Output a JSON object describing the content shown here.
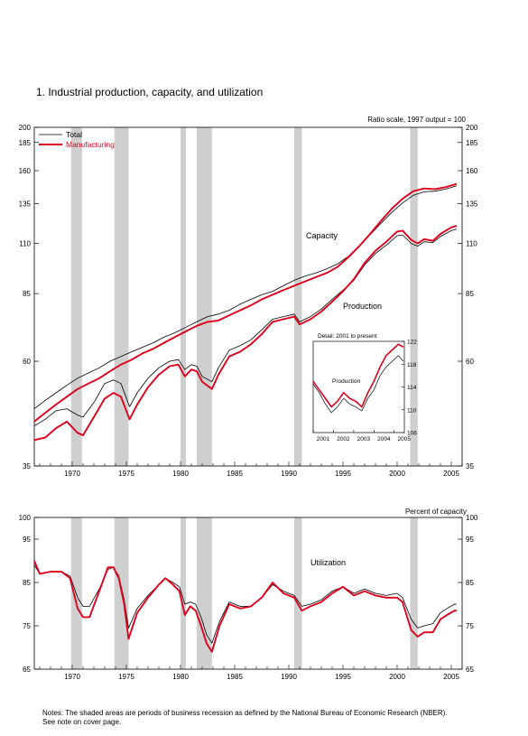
{
  "figure": {
    "title": "1.  Industrial production, capacity, and utilization",
    "notes": "Notes: The shaded areas are periods of business recession as defined by the National Bureau of Economic Research (NBER).",
    "notes2": "See note on cover page."
  },
  "colors": {
    "total": "#000000",
    "manufacturing": "#e0001b",
    "recession": "#cfcfcf"
  },
  "chart_data": [
    {
      "type": "line",
      "title": "",
      "scale": "log",
      "scale_note": "Ratio scale, 1997 output = 100",
      "xlim": [
        1966.5,
        2006.0
      ],
      "ylim": [
        35,
        200
      ],
      "yticks": [
        35,
        60,
        85,
        110,
        135,
        160,
        185,
        200
      ],
      "xticks": [
        1970,
        1975,
        1980,
        1985,
        1990,
        1995,
        2000,
        2005
      ],
      "legend": {
        "placement": "top-left",
        "entries": [
          "Total",
          "Manufacturing"
        ]
      },
      "labels": {
        "capacity": "Capacity",
        "production": "Production"
      },
      "recessions": [
        [
          1969.9,
          1970.9
        ],
        [
          1973.9,
          1975.2
        ],
        [
          1980.0,
          1980.5
        ],
        [
          1981.5,
          1982.9
        ],
        [
          1990.5,
          1991.2
        ],
        [
          2001.2,
          2001.9
        ]
      ],
      "series": [
        {
          "name": "Total",
          "group": "capacity",
          "x": [
            1966.5,
            1967.5,
            1968.5,
            1969.5,
            1970.5,
            1971.5,
            1972.5,
            1973.5,
            1974.5,
            1975.5,
            1976.5,
            1977.5,
            1978.5,
            1979.5,
            1980.5,
            1981.5,
            1982.5,
            1983.5,
            1984.5,
            1985.5,
            1986.5,
            1987.5,
            1988.5,
            1989.5,
            1990.5,
            1991.5,
            1992.5,
            1993.5,
            1994.5,
            1995.5,
            1996.5,
            1997.5,
            1998.5,
            1999.5,
            2000.5,
            2001.5,
            2002.5,
            2003.5,
            2004.5,
            2005.5
          ],
          "values": [
            47.0,
            49.0,
            51.0,
            53.0,
            55.0,
            56.5,
            58.0,
            60.0,
            61.5,
            63.0,
            64.5,
            66.0,
            68.0,
            69.5,
            71.5,
            73.5,
            75.5,
            76.5,
            78.0,
            80.5,
            82.5,
            84.5,
            86.0,
            88.5,
            91.0,
            93.0,
            94.5,
            96.5,
            99.0,
            103.0,
            108.5,
            115.0,
            122.0,
            129.0,
            135.5,
            141.0,
            143.5,
            144.0,
            145.5,
            148.0
          ]
        },
        {
          "name": "Manufacturing",
          "group": "capacity",
          "x": [
            1966.5,
            1967.5,
            1968.5,
            1969.5,
            1970.5,
            1971.5,
            1972.5,
            1973.5,
            1974.5,
            1975.5,
            1976.5,
            1977.5,
            1978.5,
            1979.5,
            1980.5,
            1981.5,
            1982.5,
            1983.5,
            1984.5,
            1985.5,
            1986.5,
            1987.5,
            1988.5,
            1989.5,
            1990.5,
            1991.5,
            1992.5,
            1993.5,
            1994.5,
            1995.5,
            1996.5,
            1997.5,
            1998.5,
            1999.5,
            2000.5,
            2001.5,
            2002.5,
            2003.5,
            2004.5,
            2005.5
          ],
          "values": [
            44.0,
            46.0,
            48.0,
            50.0,
            52.0,
            53.5,
            55.0,
            57.0,
            59.0,
            60.5,
            62.5,
            64.0,
            66.0,
            68.0,
            70.0,
            72.0,
            73.5,
            74.0,
            76.0,
            78.0,
            80.0,
            82.5,
            84.5,
            86.5,
            88.5,
            90.5,
            92.5,
            94.5,
            97.5,
            102.5,
            108.5,
            115.5,
            123.5,
            131.5,
            138.5,
            144.0,
            146.0,
            145.5,
            147.0,
            149.5
          ]
        },
        {
          "name": "Total",
          "group": "production",
          "x": [
            1966.5,
            1967.5,
            1968.5,
            1969.5,
            1970.5,
            1971.0,
            1972.0,
            1973.0,
            1973.8,
            1974.5,
            1975.3,
            1976.0,
            1977.0,
            1978.0,
            1979.0,
            1979.8,
            1980.4,
            1981.0,
            1981.5,
            1982.0,
            1982.9,
            1983.5,
            1984.5,
            1985.5,
            1986.5,
            1987.5,
            1988.5,
            1989.5,
            1990.5,
            1991.0,
            1992.0,
            1993.0,
            1994.0,
            1995.0,
            1996.0,
            1997.0,
            1998.0,
            1999.0,
            2000.0,
            2000.5,
            2001.3,
            2001.9,
            2002.5,
            2003.3,
            2004.0,
            2005.0,
            2005.5
          ],
          "values": [
            43.0,
            44.5,
            46.5,
            47.0,
            45.5,
            45.0,
            48.5,
            53.5,
            54.5,
            53.5,
            47.5,
            51.0,
            55.0,
            58.0,
            60.0,
            60.5,
            57.5,
            59.0,
            58.5,
            55.5,
            54.0,
            58.0,
            63.5,
            65.0,
            67.0,
            70.5,
            74.5,
            75.5,
            76.5,
            73.5,
            75.5,
            78.5,
            82.5,
            86.5,
            91.0,
            98.5,
            104.5,
            109.0,
            114.5,
            115.0,
            110.0,
            108.5,
            111.0,
            110.5,
            114.0,
            117.5,
            118.5
          ]
        },
        {
          "name": "Manufacturing",
          "group": "production",
          "x": [
            1966.5,
            1967.5,
            1968.5,
            1969.5,
            1970.5,
            1971.0,
            1972.0,
            1973.0,
            1973.8,
            1974.5,
            1975.3,
            1976.0,
            1977.0,
            1978.0,
            1979.0,
            1979.8,
            1980.4,
            1981.0,
            1981.5,
            1982.0,
            1982.9,
            1983.5,
            1984.5,
            1985.5,
            1986.5,
            1987.5,
            1988.5,
            1989.5,
            1990.5,
            1991.0,
            1992.0,
            1993.0,
            1994.0,
            1995.0,
            1996.0,
            1997.0,
            1998.0,
            1999.0,
            2000.0,
            2000.5,
            2001.3,
            2001.9,
            2002.5,
            2003.3,
            2004.0,
            2005.0,
            2005.5
          ],
          "values": [
            40.0,
            40.5,
            42.5,
            44.0,
            41.5,
            41.0,
            45.0,
            49.5,
            51.0,
            50.0,
            44.5,
            48.0,
            52.5,
            56.0,
            58.5,
            59.0,
            55.5,
            57.5,
            57.0,
            54.0,
            52.0,
            56.0,
            61.5,
            63.0,
            65.5,
            69.0,
            73.5,
            74.5,
            75.5,
            72.5,
            74.5,
            77.5,
            81.5,
            86.0,
            91.5,
            99.5,
            106.0,
            111.0,
            117.0,
            117.5,
            112.0,
            110.0,
            112.5,
            111.5,
            115.5,
            119.5,
            120.5
          ]
        }
      ]
    },
    {
      "type": "line",
      "title": "Detail: 2001 to present",
      "label": "Production",
      "xlim": [
        2001.0,
        2005.5
      ],
      "ylim": [
        106,
        122
      ],
      "xticks": [
        2001,
        2002,
        2003,
        2004,
        2005
      ],
      "yticks": [
        106,
        110,
        114,
        118,
        122
      ],
      "series": [
        {
          "name": "Total",
          "x": [
            2001.0,
            2001.3,
            2001.6,
            2001.9,
            2002.2,
            2002.5,
            2002.8,
            2003.1,
            2003.4,
            2003.7,
            2004.0,
            2004.3,
            2004.6,
            2004.9,
            2005.2,
            2005.45
          ],
          "values": [
            114.5,
            113.0,
            111.0,
            109.5,
            110.5,
            112.0,
            111.0,
            110.5,
            109.8,
            112.0,
            113.5,
            116.0,
            117.5,
            118.5,
            119.5,
            118.5
          ]
        },
        {
          "name": "Manufacturing",
          "x": [
            2001.0,
            2001.3,
            2001.6,
            2001.9,
            2002.2,
            2002.5,
            2002.8,
            2003.1,
            2003.4,
            2003.7,
            2004.0,
            2004.3,
            2004.6,
            2004.9,
            2005.2,
            2005.45
          ],
          "values": [
            115.0,
            113.5,
            112.0,
            110.5,
            111.5,
            113.0,
            112.0,
            111.5,
            110.5,
            113.0,
            115.0,
            117.5,
            119.5,
            120.5,
            121.5,
            121.0
          ]
        }
      ]
    },
    {
      "type": "line",
      "title": "Utilization",
      "units": "Percent of capacity",
      "xlim": [
        1966.5,
        2006.0
      ],
      "ylim": [
        65,
        100
      ],
      "yticks": [
        65,
        75,
        85,
        95,
        100
      ],
      "xticks": [
        1970,
        1975,
        1980,
        1985,
        1990,
        1995,
        2000,
        2005
      ],
      "recessions": [
        [
          1969.9,
          1970.9
        ],
        [
          1973.9,
          1975.2
        ],
        [
          1980.0,
          1980.5
        ],
        [
          1981.5,
          1982.9
        ],
        [
          1990.5,
          1991.2
        ],
        [
          2001.2,
          2001.9
        ]
      ],
      "series": [
        {
          "name": "Total",
          "x": [
            1966.5,
            1967.0,
            1968.0,
            1969.0,
            1969.8,
            1970.5,
            1971.0,
            1971.6,
            1972.5,
            1973.3,
            1973.8,
            1974.3,
            1974.8,
            1975.2,
            1976.0,
            1977.0,
            1978.0,
            1978.6,
            1979.3,
            1979.9,
            1980.4,
            1980.9,
            1981.4,
            1981.9,
            1982.4,
            1982.9,
            1983.6,
            1984.5,
            1985.5,
            1986.5,
            1987.5,
            1988.5,
            1989.5,
            1990.5,
            1991.2,
            1992.0,
            1993.0,
            1994.0,
            1995.0,
            1996.0,
            1997.0,
            1998.0,
            1999.0,
            2000.0,
            2000.5,
            2001.3,
            2001.9,
            2002.5,
            2003.3,
            2004.0,
            2004.6,
            2005.3,
            2005.5
          ],
          "values": [
            89.0,
            87.0,
            87.5,
            87.5,
            86.5,
            81.5,
            79.5,
            79.5,
            83.5,
            88.0,
            88.5,
            86.5,
            81.0,
            74.5,
            79.0,
            82.0,
            84.5,
            86.0,
            85.0,
            84.0,
            80.0,
            80.5,
            80.0,
            77.0,
            73.0,
            71.0,
            76.0,
            80.5,
            79.5,
            79.5,
            81.5,
            84.5,
            83.0,
            82.0,
            79.5,
            80.0,
            81.0,
            83.0,
            84.0,
            82.5,
            83.5,
            82.5,
            82.0,
            82.5,
            81.5,
            76.5,
            74.5,
            75.0,
            75.5,
            78.0,
            79.0,
            80.0,
            80.0
          ]
        },
        {
          "name": "Manufacturing",
          "x": [
            1966.5,
            1967.0,
            1968.0,
            1969.0,
            1969.8,
            1970.5,
            1971.0,
            1971.6,
            1972.5,
            1973.3,
            1973.8,
            1974.3,
            1974.8,
            1975.2,
            1976.0,
            1977.0,
            1978.0,
            1978.6,
            1979.3,
            1979.9,
            1980.4,
            1980.9,
            1981.4,
            1981.9,
            1982.4,
            1982.9,
            1983.6,
            1984.5,
            1985.5,
            1986.5,
            1987.5,
            1988.5,
            1989.5,
            1990.5,
            1991.2,
            1992.0,
            1993.0,
            1994.0,
            1995.0,
            1996.0,
            1997.0,
            1998.0,
            1999.0,
            2000.0,
            2000.5,
            2001.3,
            2001.9,
            2002.5,
            2003.3,
            2004.0,
            2004.6,
            2005.3,
            2005.5
          ],
          "values": [
            90.0,
            87.0,
            87.5,
            87.5,
            86.0,
            79.0,
            77.0,
            77.0,
            83.0,
            88.5,
            88.5,
            86.0,
            80.0,
            72.0,
            78.0,
            81.5,
            84.5,
            86.0,
            84.5,
            83.0,
            77.5,
            79.5,
            78.5,
            75.0,
            71.0,
            69.0,
            75.0,
            80.0,
            79.0,
            79.5,
            81.5,
            85.0,
            82.5,
            81.5,
            78.5,
            79.5,
            80.5,
            82.5,
            84.0,
            82.0,
            83.0,
            82.0,
            81.5,
            81.5,
            80.5,
            74.0,
            72.5,
            73.5,
            73.5,
            76.5,
            77.5,
            78.5,
            78.5
          ]
        }
      ]
    }
  ]
}
